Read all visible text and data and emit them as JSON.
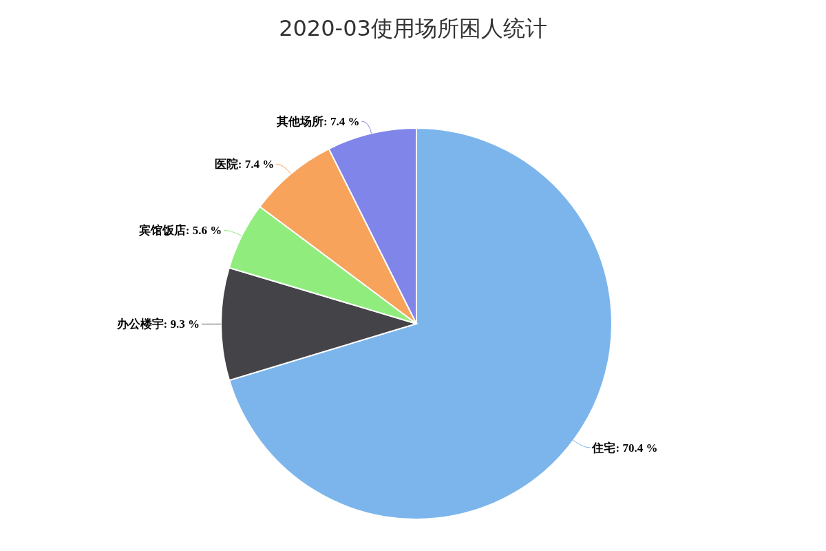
{
  "chart_data": {
    "type": "pie",
    "title": "2020-03使用场所困人统计",
    "categories": [
      "住宅",
      "办公楼宇",
      "宾馆饭店",
      "医院",
      "其他场所"
    ],
    "values": [
      70.4,
      9.3,
      5.6,
      7.4,
      7.4
    ],
    "value_labels": [
      ": 70.4 %",
      ": 9.3 %",
      ": 5.6 %",
      ": 7.4 %",
      ": 7.4 %"
    ],
    "colors": [
      "#7cb5ec",
      "#434348",
      "#90ed7d",
      "#f7a35c",
      "#8085e9"
    ],
    "legend": false
  }
}
